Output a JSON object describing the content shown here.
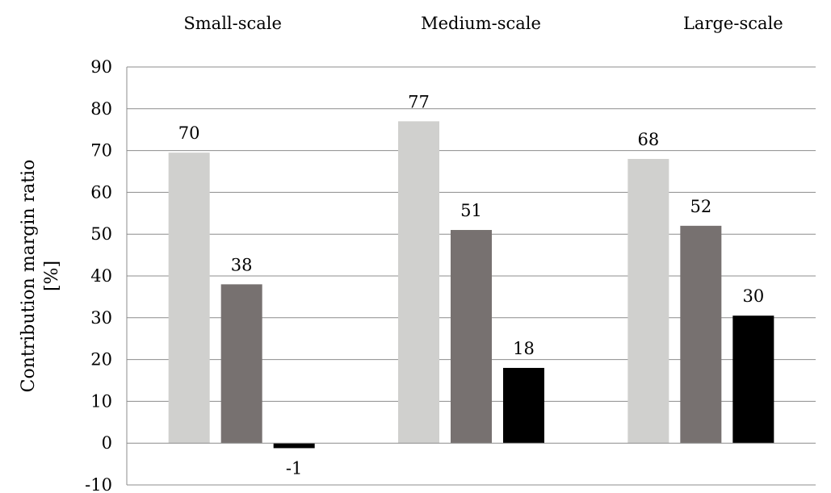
{
  "chart_data": {
    "type": "bar",
    "ylabel": "Contribution margin ratio",
    "ylabel_unit": "[%]",
    "ylim": [
      -10,
      90
    ],
    "yticks": [
      -10,
      0,
      10,
      20,
      30,
      40,
      50,
      60,
      70,
      80,
      90
    ],
    "grid": true,
    "categories": [
      "Small-scale",
      "Medium-scale",
      "Large-scale"
    ],
    "series": [
      {
        "values": [
          69.5,
          77,
          68
        ],
        "labels": [
          "70",
          "77",
          "68"
        ],
        "color": "#d0d0ce"
      },
      {
        "values": [
          38,
          51,
          52
        ],
        "labels": [
          "38",
          "51",
          "52"
        ],
        "color": "#777170"
      },
      {
        "values": [
          -1.2,
          18,
          30.5
        ],
        "labels": [
          "-1",
          "18",
          "30"
        ],
        "color": "#000000"
      }
    ]
  }
}
